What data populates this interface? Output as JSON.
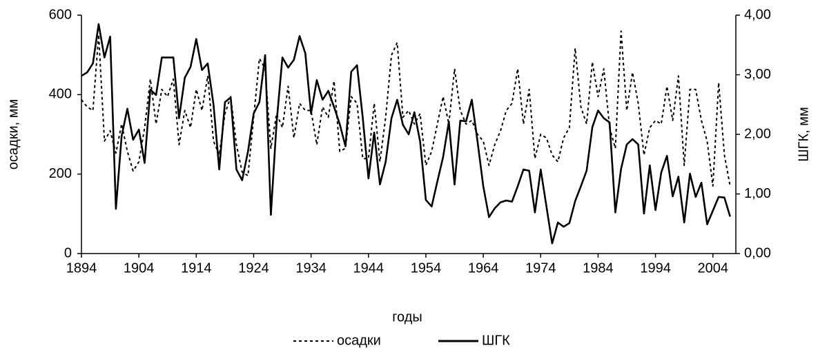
{
  "chart_data": {
    "type": "line",
    "x_label": "годы",
    "y_label": "осадки, мм",
    "y2_label": "ШГК, мм",
    "x": [
      1894,
      1895,
      1896,
      1897,
      1898,
      1899,
      1900,
      1901,
      1902,
      1903,
      1904,
      1905,
      1906,
      1907,
      1908,
      1909,
      1910,
      1911,
      1912,
      1913,
      1914,
      1915,
      1916,
      1917,
      1918,
      1919,
      1920,
      1921,
      1922,
      1923,
      1924,
      1925,
      1926,
      1927,
      1928,
      1929,
      1930,
      1931,
      1932,
      1933,
      1934,
      1935,
      1936,
      1937,
      1938,
      1939,
      1940,
      1941,
      1942,
      1943,
      1944,
      1945,
      1946,
      1947,
      1948,
      1949,
      1950,
      1951,
      1952,
      1953,
      1954,
      1955,
      1956,
      1957,
      1958,
      1959,
      1960,
      1961,
      1962,
      1963,
      1964,
      1965,
      1966,
      1967,
      1968,
      1969,
      1970,
      1971,
      1972,
      1973,
      1974,
      1975,
      1976,
      1977,
      1978,
      1979,
      1980,
      1981,
      1982,
      1983,
      1984,
      1985,
      1986,
      1987,
      1988,
      1989,
      1990,
      1991,
      1992,
      1993,
      1994,
      1995,
      1996,
      1997,
      1998,
      1999,
      2000,
      2001,
      2002,
      2003,
      2004,
      2005,
      2006,
      2007
    ],
    "series": [
      {
        "name": "осадки",
        "color": "#000000",
        "style": "dashed",
        "axis": "y",
        "values": [
          387,
          369,
          360,
          551,
          283,
          309,
          253,
          326,
          257,
          208,
          231,
          317,
          439,
          326,
          413,
          395,
          439,
          274,
          360,
          317,
          413,
          360,
          447,
          283,
          248,
          352,
          395,
          274,
          205,
          196,
          343,
          491,
          465,
          265,
          352,
          317,
          421,
          291,
          378,
          360,
          360,
          274,
          369,
          343,
          434,
          257,
          265,
          395,
          378,
          239,
          239,
          378,
          231,
          343,
          499,
          531,
          343,
          360,
          326,
          352,
          222,
          257,
          326,
          395,
          326,
          465,
          360,
          326,
          335,
          300,
          283,
          222,
          274,
          309,
          360,
          378,
          465,
          326,
          413,
          239,
          300,
          291,
          248,
          231,
          291,
          317,
          517,
          369,
          326,
          482,
          395,
          465,
          317,
          265,
          560,
          360,
          456,
          378,
          248,
          317,
          335,
          326,
          421,
          335,
          447,
          222,
          413,
          413,
          335,
          283,
          170,
          430,
          248,
          170
        ]
      },
      {
        "name": "ШГК",
        "color": "#000000",
        "style": "solid",
        "axis": "y2",
        "values": [
          2.98,
          3.04,
          3.19,
          3.85,
          3.29,
          3.64,
          0.75,
          1.97,
          2.43,
          1.91,
          2.08,
          1.52,
          2.75,
          2.66,
          3.29,
          3.29,
          3.29,
          2.27,
          2.95,
          3.13,
          3.6,
          3.08,
          3.19,
          2.5,
          1.41,
          2.54,
          2.62,
          1.41,
          1.23,
          1.71,
          2.35,
          2.54,
          3.33,
          0.65,
          2.2,
          3.29,
          3.12,
          3.25,
          3.65,
          3.36,
          2.35,
          2.91,
          2.58,
          2.73,
          2.46,
          2.17,
          1.8,
          3.05,
          3.16,
          2.28,
          1.26,
          2.03,
          1.16,
          1.54,
          2.27,
          2.58,
          2.16,
          2.0,
          2.37,
          1.88,
          0.9,
          0.79,
          1.21,
          1.62,
          2.21,
          1.16,
          2.23,
          2.22,
          2.58,
          1.88,
          1.13,
          0.61,
          0.76,
          0.86,
          0.89,
          0.87,
          1.13,
          1.41,
          1.39,
          0.69,
          1.41,
          0.79,
          0.17,
          0.52,
          0.45,
          0.51,
          0.88,
          1.13,
          1.39,
          2.12,
          2.4,
          2.27,
          2.2,
          0.69,
          1.42,
          1.83,
          1.92,
          1.83,
          0.67,
          1.48,
          0.73,
          1.36,
          1.64,
          0.96,
          1.29,
          0.52,
          1.34,
          0.95,
          1.19,
          0.49,
          0.72,
          0.95,
          0.94,
          0.62
        ]
      }
    ],
    "xlim": [
      1894,
      2008
    ],
    "xticks": [
      1894,
      1904,
      1914,
      1924,
      1934,
      1944,
      1954,
      1964,
      1974,
      1984,
      1994,
      2004
    ],
    "ylim": [
      0,
      600
    ],
    "yticks": [
      0,
      200,
      400,
      600
    ],
    "y2lim": [
      0,
      4
    ],
    "y2ticks": [
      {
        "value": 0,
        "label": "0,00"
      },
      {
        "value": 1,
        "label": "1,00"
      },
      {
        "value": 2,
        "label": "2,00"
      },
      {
        "value": 3,
        "label": "3,00"
      },
      {
        "value": 4,
        "label": "4,00"
      }
    ],
    "grid": false,
    "legend": "bottom"
  }
}
